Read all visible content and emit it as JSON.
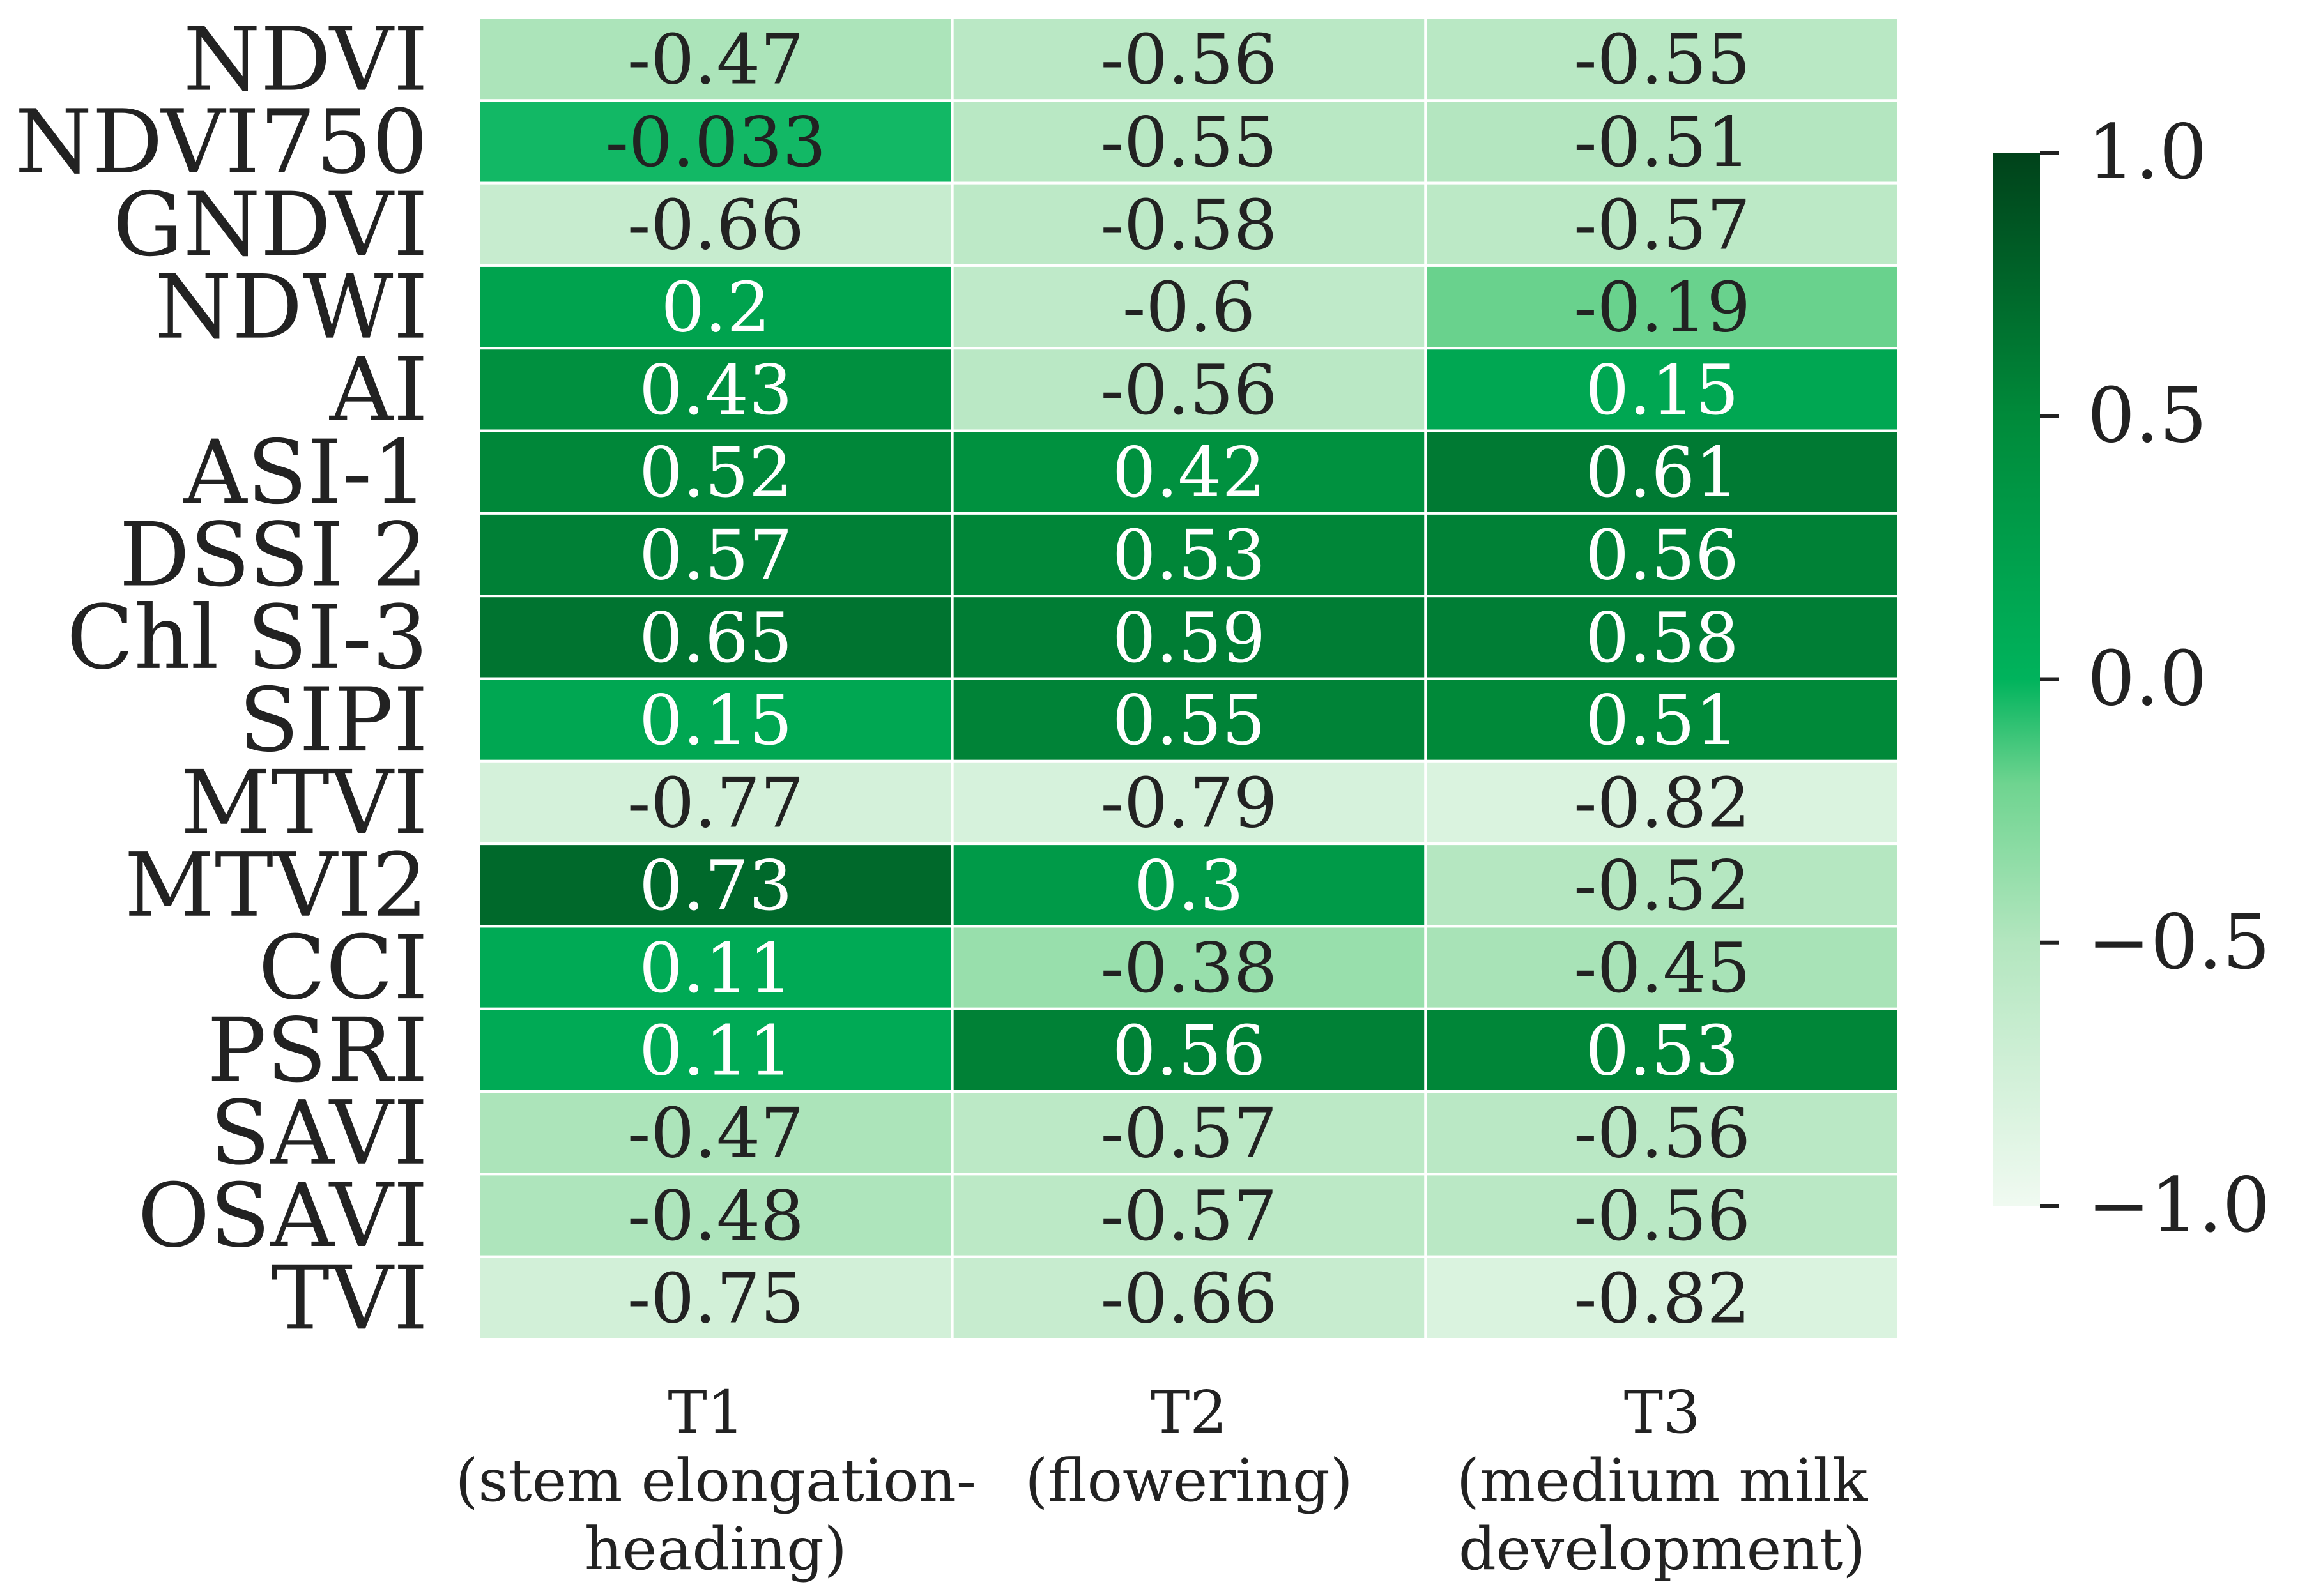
{
  "chart_data": {
    "type": "heatmap",
    "title": "",
    "xlabel": "",
    "ylabel": "",
    "rows": [
      "NDVI",
      "NDVI750",
      "GNDVI",
      "NDWI",
      "AI",
      "ASI-1",
      "DSSI 2",
      "Chl SI-3",
      "SIPI",
      "MTVI",
      "MTVI2",
      "CCI",
      "PSRI",
      "SAVI",
      "OSAVI",
      "TVI"
    ],
    "columns": [
      {
        "label": "T1",
        "sublabel_lines": [
          "(stem elongation-",
          "heading)"
        ]
      },
      {
        "label": "T2",
        "sublabel_lines": [
          "(flowering)"
        ]
      },
      {
        "label": "T3",
        "sublabel_lines": [
          "(medium milk",
          "development)"
        ]
      }
    ],
    "values": [
      [
        -0.47,
        -0.56,
        -0.55
      ],
      [
        -0.033,
        -0.55,
        -0.51
      ],
      [
        -0.66,
        -0.58,
        -0.57
      ],
      [
        0.2,
        -0.6,
        -0.19
      ],
      [
        0.43,
        -0.56,
        0.15
      ],
      [
        0.52,
        0.42,
        0.61
      ],
      [
        0.57,
        0.53,
        0.56
      ],
      [
        0.65,
        0.59,
        0.58
      ],
      [
        0.15,
        0.55,
        0.51
      ],
      [
        -0.77,
        -0.79,
        -0.82
      ],
      [
        0.73,
        0.3,
        -0.52
      ],
      [
        0.11,
        -0.38,
        -0.45
      ],
      [
        0.11,
        0.56,
        0.53
      ],
      [
        -0.47,
        -0.57,
        -0.56
      ],
      [
        -0.48,
        -0.57,
        -0.56
      ],
      [
        -0.75,
        -0.66,
        -0.82
      ]
    ],
    "value_labels": [
      [
        "-0.47",
        "-0.56",
        "-0.55"
      ],
      [
        "-0.033",
        "-0.55",
        "-0.51"
      ],
      [
        "-0.66",
        "-0.58",
        "-0.57"
      ],
      [
        "0.2",
        "-0.6",
        "-0.19"
      ],
      [
        "0.43",
        "-0.56",
        "0.15"
      ],
      [
        "0.52",
        "0.42",
        "0.61"
      ],
      [
        "0.57",
        "0.53",
        "0.56"
      ],
      [
        "0.65",
        "0.59",
        "0.58"
      ],
      [
        "0.15",
        "0.55",
        "0.51"
      ],
      [
        "-0.77",
        "-0.79",
        "-0.82"
      ],
      [
        "0.73",
        "0.3",
        "-0.52"
      ],
      [
        "0.11",
        "-0.38",
        "-0.45"
      ],
      [
        "0.11",
        "0.56",
        "0.53"
      ],
      [
        "-0.47",
        "-0.57",
        "-0.56"
      ],
      [
        "-0.48",
        "-0.57",
        "-0.56"
      ],
      [
        "-0.75",
        "-0.66",
        "-0.82"
      ]
    ],
    "colorbar": {
      "range": [
        -1.0,
        1.0
      ],
      "ticks": [
        1.0,
        0.5,
        0.0,
        -0.5,
        -1.0
      ],
      "tick_labels": [
        "1.0",
        "0.5",
        "0.0",
        "−0.5",
        "−1.0"
      ],
      "colors": [
        "#f0faf1",
        "#6fd490",
        "#00b35c",
        "#00421a"
      ]
    },
    "annotation_colors": {
      "dark_text": "#222222",
      "light_text": "#ffffff"
    }
  }
}
